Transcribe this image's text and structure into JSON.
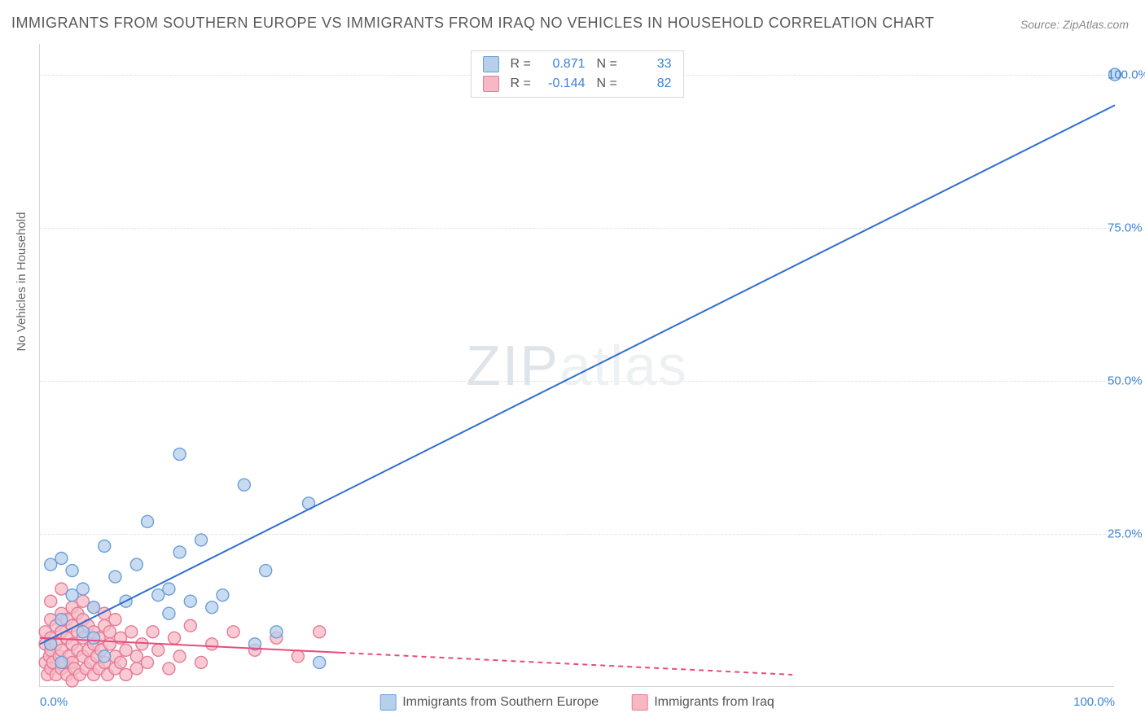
{
  "title": "IMMIGRANTS FROM SOUTHERN EUROPE VS IMMIGRANTS FROM IRAQ NO VEHICLES IN HOUSEHOLD CORRELATION CHART",
  "source_prefix": "Source: ",
  "source_name": "ZipAtlas.com",
  "ylabel": "No Vehicles in Household",
  "watermark_a": "ZIP",
  "watermark_b": "atlas",
  "chart": {
    "type": "scatter",
    "xlim": [
      0,
      100
    ],
    "ylim": [
      0,
      105
    ],
    "y_gridlines": [
      25,
      50,
      75,
      100
    ],
    "y_tick_labels": [
      "25.0%",
      "50.0%",
      "75.0%",
      "100.0%"
    ],
    "x_ticks": [
      0,
      100
    ],
    "x_tick_labels": [
      "0.0%",
      "100.0%"
    ],
    "background_color": "#ffffff",
    "grid_color": "#e2e2e2",
    "axis_color": "#d6d6d6",
    "tick_label_color": "#3b82d6",
    "marker_radius": 7.5,
    "marker_stroke_width": 1.4,
    "series": [
      {
        "key": "southern_europe",
        "label": "Immigrants from Southern Europe",
        "fill": "#b6cfeb",
        "stroke": "#6a9fd8",
        "fill_opacity": 0.75,
        "R": "0.871",
        "N": "33",
        "trend": {
          "color": "#2f6fd0",
          "width": 2,
          "x1": 0,
          "y1": 7,
          "x2": 100,
          "y2": 95,
          "dash": "none",
          "solid_until_x": 100
        },
        "points": [
          [
            100,
            100
          ],
          [
            1,
            20
          ],
          [
            2,
            21
          ],
          [
            3,
            19
          ],
          [
            3,
            15
          ],
          [
            4,
            16
          ],
          [
            5,
            13
          ],
          [
            6,
            23
          ],
          [
            7,
            18
          ],
          [
            8,
            14
          ],
          [
            9,
            20
          ],
          [
            10,
            27
          ],
          [
            11,
            15
          ],
          [
            12,
            12
          ],
          [
            12,
            16
          ],
          [
            13,
            22
          ],
          [
            13,
            38
          ],
          [
            14,
            14
          ],
          [
            15,
            24
          ],
          [
            16,
            13
          ],
          [
            17,
            15
          ],
          [
            19,
            33
          ],
          [
            20,
            7
          ],
          [
            21,
            19
          ],
          [
            22,
            9
          ],
          [
            25,
            30
          ],
          [
            26,
            4
          ],
          [
            1,
            7
          ],
          [
            2,
            4
          ],
          [
            4,
            9
          ],
          [
            5,
            8
          ],
          [
            6,
            5
          ],
          [
            2,
            11
          ]
        ]
      },
      {
        "key": "iraq",
        "label": "Immigrants from Iraq",
        "fill": "#f5b8c4",
        "stroke": "#e77a95",
        "fill_opacity": 0.75,
        "R": "-0.144",
        "N": "82",
        "trend": {
          "color": "#e94b7a",
          "width": 2,
          "x1": 0,
          "y1": 8,
          "x2": 70,
          "y2": 2,
          "dash": "6 5",
          "solid_until_x": 28
        },
        "points": [
          [
            0.5,
            4
          ],
          [
            0.5,
            7
          ],
          [
            0.5,
            9
          ],
          [
            0.7,
            2
          ],
          [
            0.9,
            5
          ],
          [
            1,
            3
          ],
          [
            1,
            6
          ],
          [
            1,
            8
          ],
          [
            1,
            11
          ],
          [
            1,
            14
          ],
          [
            1.2,
            4
          ],
          [
            1.5,
            2
          ],
          [
            1.5,
            7
          ],
          [
            1.5,
            10
          ],
          [
            1.8,
            5
          ],
          [
            2,
            3
          ],
          [
            2,
            6
          ],
          [
            2,
            9
          ],
          [
            2,
            12
          ],
          [
            2,
            16
          ],
          [
            2.2,
            4
          ],
          [
            2.5,
            2
          ],
          [
            2.5,
            8
          ],
          [
            2.5,
            11
          ],
          [
            2.7,
            5
          ],
          [
            3,
            1
          ],
          [
            3,
            4
          ],
          [
            3,
            7
          ],
          [
            3,
            10
          ],
          [
            3,
            13
          ],
          [
            3.2,
            3
          ],
          [
            3.5,
            6
          ],
          [
            3.5,
            9
          ],
          [
            3.5,
            12
          ],
          [
            3.7,
            2
          ],
          [
            4,
            5
          ],
          [
            4,
            8
          ],
          [
            4,
            11
          ],
          [
            4,
            14
          ],
          [
            4.3,
            3
          ],
          [
            4.5,
            6
          ],
          [
            4.5,
            10
          ],
          [
            4.7,
            4
          ],
          [
            5,
            2
          ],
          [
            5,
            7
          ],
          [
            5,
            9
          ],
          [
            5,
            13
          ],
          [
            5.3,
            5
          ],
          [
            5.5,
            3
          ],
          [
            5.5,
            8
          ],
          [
            5.7,
            6
          ],
          [
            6,
            4
          ],
          [
            6,
            10
          ],
          [
            6,
            12
          ],
          [
            6.3,
            2
          ],
          [
            6.5,
            7
          ],
          [
            6.5,
            9
          ],
          [
            7,
            3
          ],
          [
            7,
            5
          ],
          [
            7,
            11
          ],
          [
            7.5,
            4
          ],
          [
            7.5,
            8
          ],
          [
            8,
            6
          ],
          [
            8,
            2
          ],
          [
            8.5,
            9
          ],
          [
            9,
            5
          ],
          [
            9,
            3
          ],
          [
            9.5,
            7
          ],
          [
            10,
            4
          ],
          [
            10.5,
            9
          ],
          [
            11,
            6
          ],
          [
            12,
            3
          ],
          [
            12.5,
            8
          ],
          [
            13,
            5
          ],
          [
            14,
            10
          ],
          [
            15,
            4
          ],
          [
            16,
            7
          ],
          [
            18,
            9
          ],
          [
            20,
            6
          ],
          [
            22,
            8
          ],
          [
            24,
            5
          ],
          [
            26,
            9
          ]
        ]
      }
    ],
    "legend_stats_labels": {
      "R": "R  =",
      "N": "N  ="
    }
  }
}
